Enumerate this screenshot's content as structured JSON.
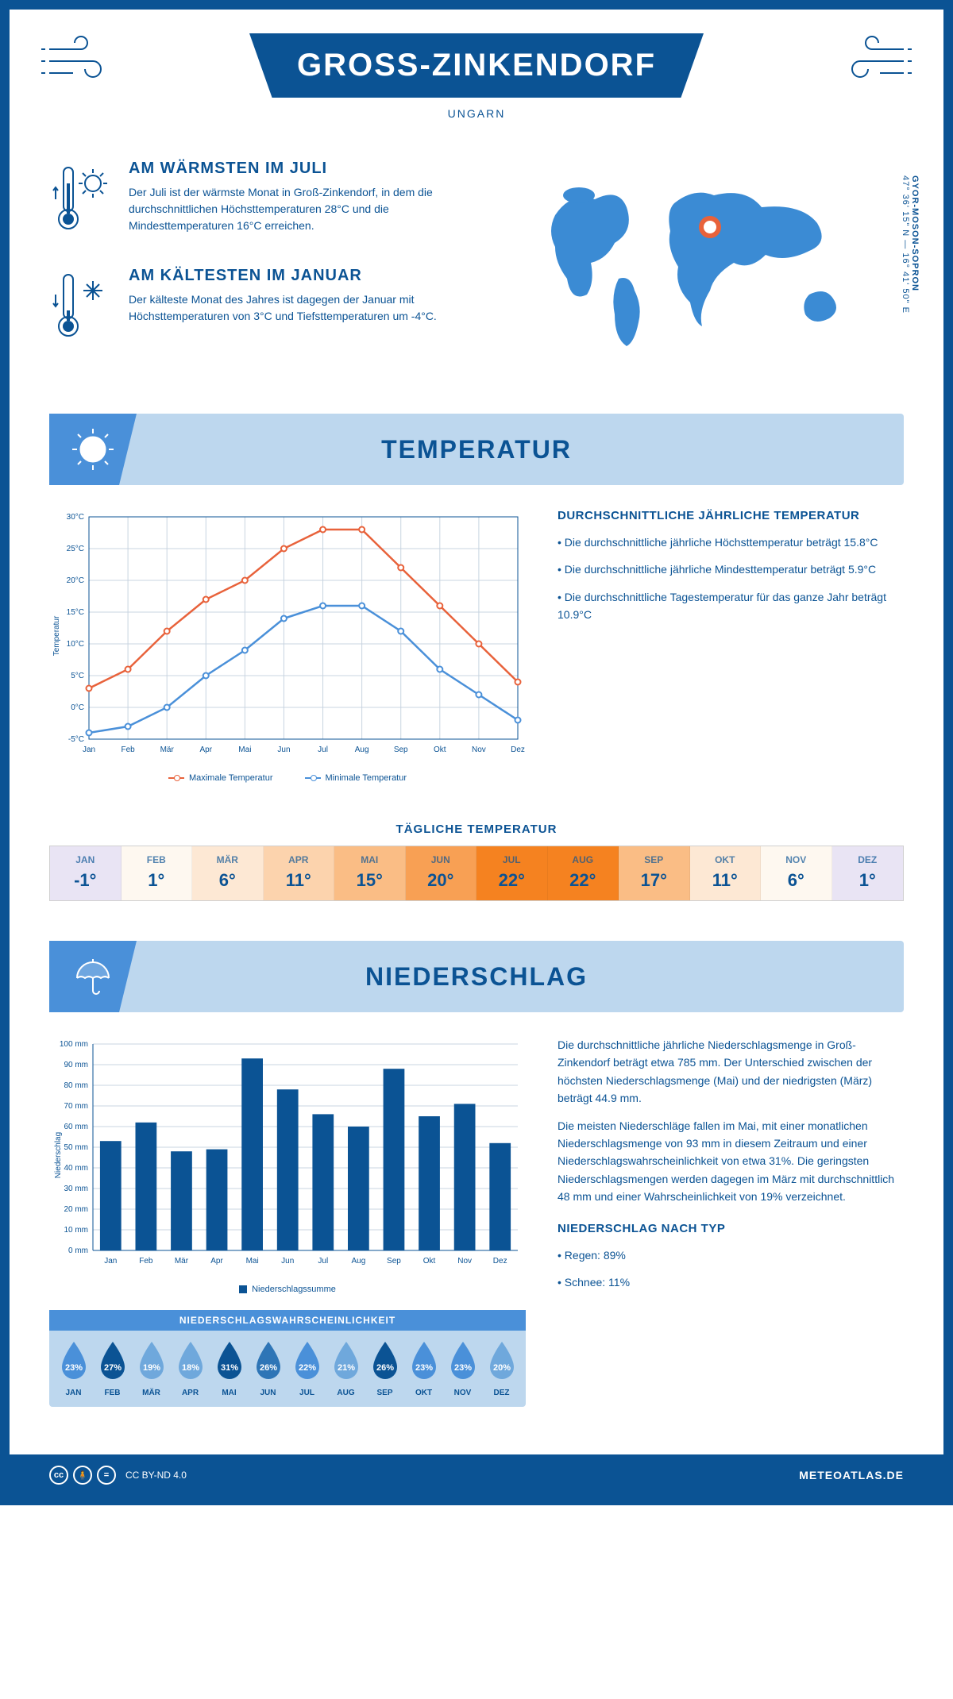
{
  "header": {
    "title": "GROSS-ZINKENDORF",
    "subtitle": "UNGARN"
  },
  "coords": {
    "lat_lon": "47° 36' 15\" N — 16° 41' 50\" E",
    "region": "GYOR-MOSON-SOPRON"
  },
  "intro": {
    "warm": {
      "title": "AM WÄRMSTEN IM JULI",
      "text": "Der Juli ist der wärmste Monat in Groß-Zinkendorf, in dem die durchschnittlichen Höchsttemperaturen 28°C und die Mindesttemperaturen 16°C erreichen."
    },
    "cold": {
      "title": "AM KÄLTESTEN IM JANUAR",
      "text": "Der kälteste Monat des Jahres ist dagegen der Januar mit Höchsttemperaturen von 3°C und Tiefsttemperaturen um -4°C."
    }
  },
  "section_temp": {
    "title": "TEMPERATUR",
    "chart": {
      "months": [
        "Jan",
        "Feb",
        "Mär",
        "Apr",
        "Mai",
        "Jun",
        "Jul",
        "Aug",
        "Sep",
        "Okt",
        "Nov",
        "Dez"
      ],
      "max": [
        3,
        6,
        12,
        17,
        20,
        25,
        28,
        28,
        22,
        16,
        10,
        4
      ],
      "min": [
        -4,
        -3,
        0,
        5,
        9,
        14,
        16,
        16,
        12,
        6,
        2,
        -2
      ],
      "ylim": [
        -5,
        30
      ],
      "ytick_step": 5,
      "max_color": "#e8623b",
      "min_color": "#4a90d9",
      "grid_color": "#c8d4e0",
      "bg": "#ffffff",
      "y_label": "Temperatur",
      "legend_max": "Maximale Temperatur",
      "legend_min": "Minimale Temperatur"
    },
    "side": {
      "heading": "DURCHSCHNITTLICHE JÄHRLICHE TEMPERATUR",
      "b1": "• Die durchschnittliche jährliche Höchsttemperatur beträgt 15.8°C",
      "b2": "• Die durchschnittliche jährliche Mindesttemperatur beträgt 5.9°C",
      "b3": "• Die durchschnittliche Tagestemperatur für das ganze Jahr beträgt 10.9°C"
    },
    "daily_title": "TÄGLICHE TEMPERATUR",
    "daily": {
      "months": [
        "JAN",
        "FEB",
        "MÄR",
        "APR",
        "MAI",
        "JUN",
        "JUL",
        "AUG",
        "SEP",
        "OKT",
        "NOV",
        "DEZ"
      ],
      "values": [
        "-1°",
        "1°",
        "6°",
        "11°",
        "15°",
        "20°",
        "22°",
        "22°",
        "17°",
        "11°",
        "6°",
        "1°"
      ],
      "colors": [
        "#e9e4f4",
        "#fef8f0",
        "#fde8d4",
        "#fcd3ad",
        "#fabd85",
        "#f8a054",
        "#f58220",
        "#f58220",
        "#fabd85",
        "#fde8d4",
        "#fef8f0",
        "#e9e4f4"
      ]
    }
  },
  "section_precip": {
    "title": "NIEDERSCHLAG",
    "chart": {
      "months": [
        "Jan",
        "Feb",
        "Mär",
        "Apr",
        "Mai",
        "Jun",
        "Jul",
        "Aug",
        "Sep",
        "Okt",
        "Nov",
        "Dez"
      ],
      "values": [
        53,
        62,
        48,
        49,
        93,
        78,
        66,
        60,
        88,
        65,
        71,
        52
      ],
      "ylim": [
        0,
        100
      ],
      "ytick_step": 10,
      "bar_color": "#0b5394",
      "grid_color": "#c8d4e0",
      "y_label": "Niederschlag",
      "legend": "Niederschlagssumme"
    },
    "text": {
      "p1": "Die durchschnittliche jährliche Niederschlagsmenge in Groß-Zinkendorf beträgt etwa 785 mm. Der Unterschied zwischen der höchsten Niederschlagsmenge (Mai) und der niedrigsten (März) beträgt 44.9 mm.",
      "p2": "Die meisten Niederschläge fallen im Mai, mit einer monatlichen Niederschlagsmenge von 93 mm in diesem Zeitraum und einer Niederschlagswahrscheinlichkeit von etwa 31%. Die geringsten Niederschlagsmengen werden dagegen im März mit durchschnittlich 48 mm und einer Wahrscheinlichkeit von 19% verzeichnet.",
      "type_heading": "NIEDERSCHLAG NACH TYP",
      "type1": "• Regen: 89%",
      "type2": "• Schnee: 11%"
    },
    "prob": {
      "title": "NIEDERSCHLAGSWAHRSCHEINLICHKEIT",
      "months": [
        "JAN",
        "FEB",
        "MÄR",
        "APR",
        "MAI",
        "JUN",
        "JUL",
        "AUG",
        "SEP",
        "OKT",
        "NOV",
        "DEZ"
      ],
      "values": [
        "23%",
        "27%",
        "19%",
        "18%",
        "31%",
        "26%",
        "22%",
        "21%",
        "26%",
        "23%",
        "23%",
        "20%"
      ],
      "colors": [
        "#4a90d9",
        "#0b5394",
        "#6fa8dc",
        "#6fa8dc",
        "#0b5394",
        "#2e75b6",
        "#4a90d9",
        "#6fa8dc",
        "#0b5394",
        "#4a90d9",
        "#4a90d9",
        "#6fa8dc"
      ]
    }
  },
  "footer": {
    "license": "CC BY-ND 4.0",
    "site": "METEOATLAS.DE"
  }
}
